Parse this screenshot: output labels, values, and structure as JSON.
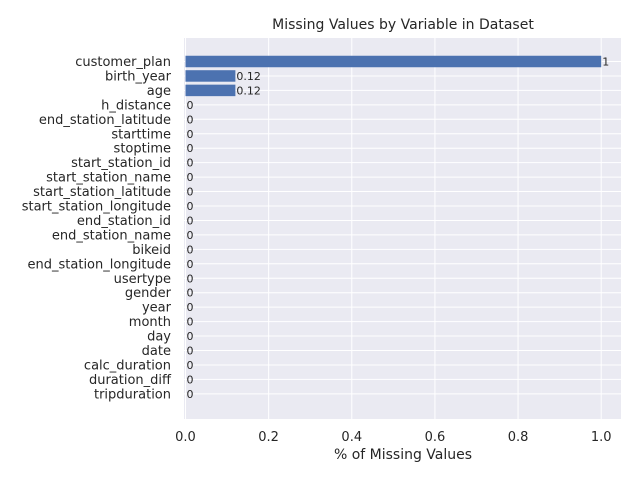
{
  "chart_data": {
    "type": "bar",
    "orientation": "horizontal",
    "title": "Missing Values by Variable in Dataset",
    "xlabel": "% of Missing Values",
    "ylabel": "",
    "xlim": [
      0.0,
      1.05
    ],
    "xticks": [
      0.0,
      0.2,
      0.4,
      0.6,
      0.8,
      1.0
    ],
    "xtick_labels": [
      "0.0",
      "0.2",
      "0.4",
      "0.6",
      "0.8",
      "1.0"
    ],
    "grid": true,
    "colors": {
      "bar": "#4c72b0",
      "plot_bg": "#eaeaf2",
      "grid": "#ffffff",
      "text": "#262626"
    },
    "categories": [
      "customer_plan",
      "birth_year",
      "age",
      "h_distance",
      "end_station_latitude",
      "starttime",
      "stoptime",
      "start_station_id",
      "start_station_name",
      "start_station_latitude",
      "start_station_longitude",
      "end_station_id",
      "end_station_name",
      "bikeid",
      "end_station_longitude",
      "usertype",
      "gender",
      "year",
      "month",
      "day",
      "date",
      "calc_duration",
      "duration_diff",
      "tripduration"
    ],
    "values": [
      1,
      0.12,
      0.12,
      0,
      0,
      0,
      0,
      0,
      0,
      0,
      0,
      0,
      0,
      0,
      0,
      0,
      0,
      0,
      0,
      0,
      0,
      0,
      0,
      0
    ],
    "data_labels": [
      "1",
      "0.12",
      "0.12",
      "0",
      "0",
      "0",
      "0",
      "0",
      "0",
      "0",
      "0",
      "0",
      "0",
      "0",
      "0",
      "0",
      "0",
      "0",
      "0",
      "0",
      "0",
      "0",
      "0",
      "0"
    ]
  }
}
